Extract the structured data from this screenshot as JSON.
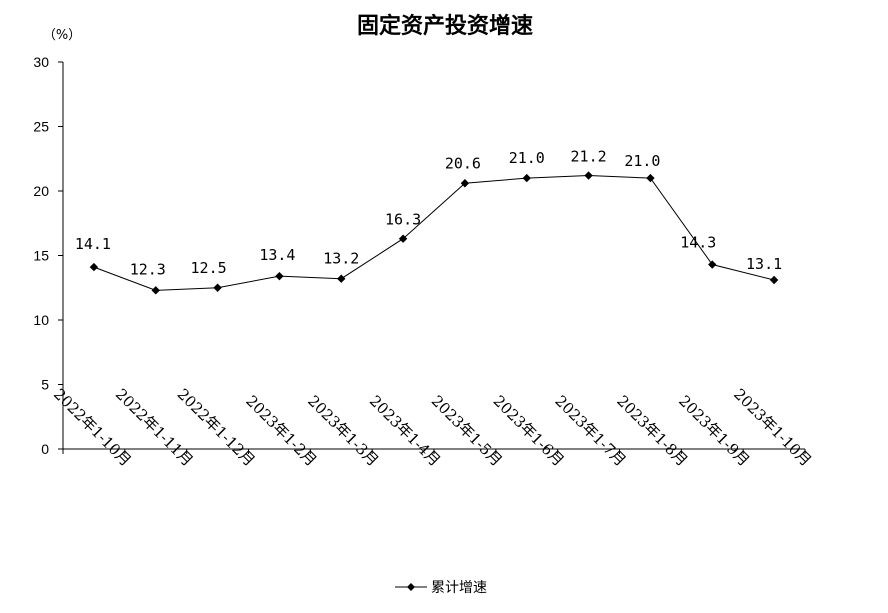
{
  "chart_data": {
    "type": "line",
    "title": "固定资产投资增速",
    "ylabel": "（%）",
    "xlabel": "",
    "ylim": [
      0,
      30
    ],
    "yticks": [
      0,
      5,
      10,
      15,
      20,
      25,
      30
    ],
    "grid": false,
    "legend_position": "bottom",
    "categories": [
      "2022年1-10月",
      "2022年1-11月",
      "2022年1-12月",
      "2023年1-2月",
      "2023年1-3月",
      "2023年1-4月",
      "2023年1-5月",
      "2023年1-6月",
      "2023年1-7月",
      "2023年1-8月",
      "2023年1-9月",
      "2023年1-10月"
    ],
    "series": [
      {
        "name": "累计增速",
        "values": [
          14.1,
          12.3,
          12.5,
          13.4,
          13.2,
          16.3,
          20.6,
          21.0,
          21.2,
          21.0,
          14.3,
          13.1
        ],
        "labels": [
          "14.1",
          "12.3",
          "12.5",
          "13.4",
          "13.2",
          "16.3",
          "20.6",
          "21.0",
          "21.2",
          "21.0",
          "14.3",
          "13.1"
        ],
        "color": "#000000",
        "marker": "diamond"
      }
    ]
  }
}
